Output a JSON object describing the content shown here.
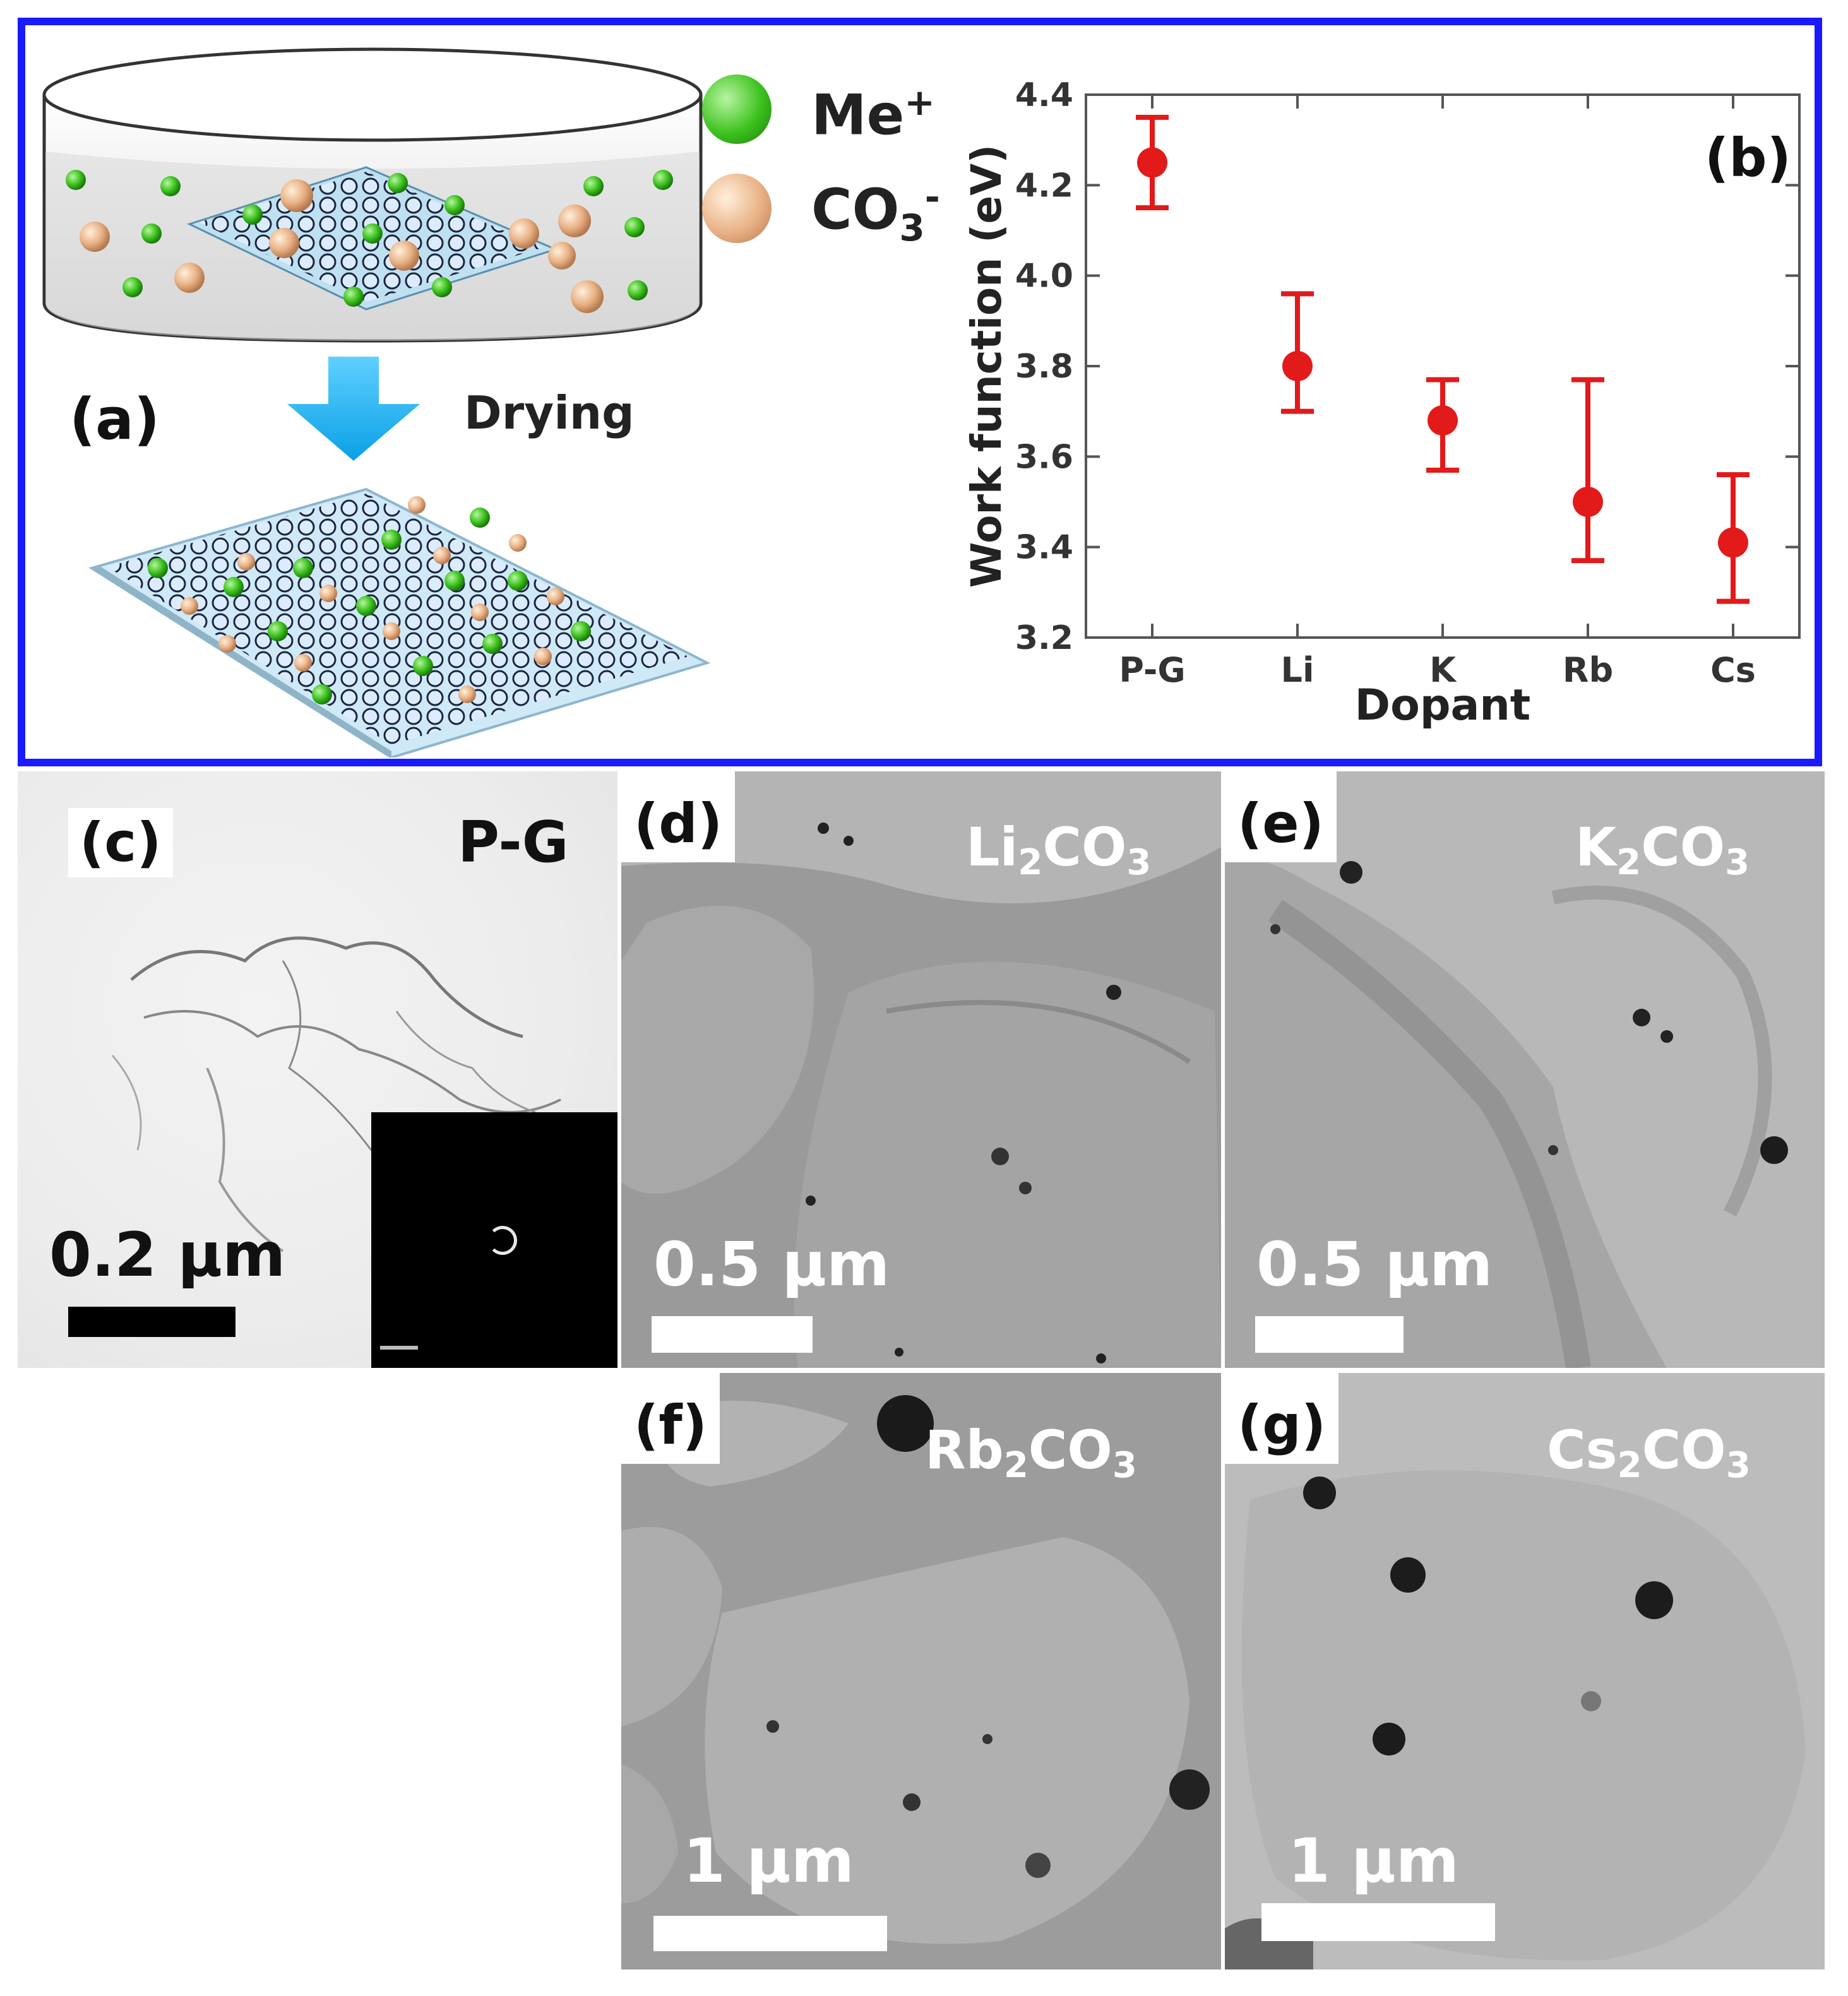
{
  "panel_a": {
    "label": "(a)",
    "legend": [
      {
        "icon": "green-sphere-icon",
        "text": "Me",
        "sup": "+"
      },
      {
        "icon": "orange-sphere-icon",
        "text": "CO",
        "sub": "3",
        "sup": "-"
      }
    ],
    "arrow_label": "Drying"
  },
  "panel_b": {
    "label": "(b)"
  },
  "chart_data": {
    "type": "scatter",
    "categories": [
      "P-G",
      "Li",
      "K",
      "Rb",
      "Cs"
    ],
    "values": [
      4.25,
      3.8,
      3.68,
      3.5,
      3.41
    ],
    "error_low": [
      4.15,
      3.7,
      3.57,
      3.37,
      3.28
    ],
    "error_high": [
      4.35,
      3.96,
      3.77,
      3.77,
      3.56
    ],
    "xlabel": "Dopant",
    "ylabel": "Work function (eV)",
    "ylim": [
      3.2,
      4.4
    ],
    "yticks": [
      "3.2",
      "3.4",
      "3.6",
      "3.8",
      "4.0",
      "4.2",
      "4.4"
    ],
    "grid": false,
    "marker_color": "#e21a1a"
  },
  "tem_panels": [
    {
      "id": "c",
      "label": "(c)",
      "title": "P-G",
      "title_sub": "",
      "title_tail": "",
      "scale": "0.2 μm"
    },
    {
      "id": "d",
      "label": "(d)",
      "title": "Li",
      "title_sub": "2",
      "title_tail": "CO",
      "title_sub2": "3",
      "scale": "0.5 μm"
    },
    {
      "id": "e",
      "label": "(e)",
      "title": "K",
      "title_sub": "2",
      "title_tail": "CO",
      "title_sub2": "3",
      "scale": "0.5 μm"
    },
    {
      "id": "f",
      "label": "(f)",
      "title": "Rb",
      "title_sub": "2",
      "title_tail": "CO",
      "title_sub2": "3",
      "scale": "1 μm"
    },
    {
      "id": "g",
      "label": "(g)",
      "title": "Cs",
      "title_sub": "2",
      "title_tail": "CO",
      "title_sub2": "3",
      "scale": "1 μm"
    }
  ]
}
